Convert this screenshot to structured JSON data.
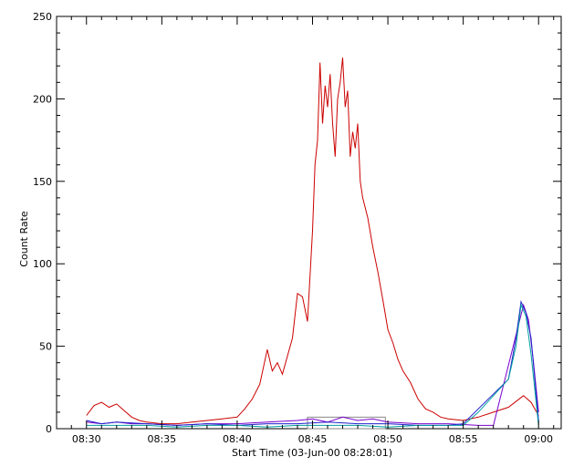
{
  "chart_data": {
    "type": "line",
    "xlabel": "Start Time (03-Jun-00 08:28:01)",
    "ylabel": "Count Rate",
    "xlim": [
      "08:28:01",
      "09:01:30"
    ],
    "ylim": [
      0,
      250
    ],
    "x_ticks": [
      "08:30",
      "08:35",
      "08:40",
      "08:45",
      "08:50",
      "08:55",
      "09:00"
    ],
    "y_ticks": [
      0,
      50,
      100,
      150,
      200,
      250
    ],
    "grid": false,
    "legend": "none",
    "series": [
      {
        "color": "#cc0000",
        "points": [
          [
            "08:30:00",
            8
          ],
          [
            "08:30:30",
            14
          ],
          [
            "08:31:00",
            16
          ],
          [
            "08:31:30",
            13
          ],
          [
            "08:32:00",
            15
          ],
          [
            "08:32:30",
            11
          ],
          [
            "08:33:00",
            7
          ],
          [
            "08:33:30",
            5
          ],
          [
            "08:34:00",
            4
          ],
          [
            "08:35:00",
            3
          ],
          [
            "08:36:00",
            3
          ],
          [
            "08:37:00",
            4
          ],
          [
            "08:38:00",
            5
          ],
          [
            "08:39:00",
            6
          ],
          [
            "08:40:00",
            7
          ],
          [
            "08:40:30",
            12
          ],
          [
            "08:41:00",
            18
          ],
          [
            "08:41:30",
            27
          ],
          [
            "08:42:00",
            48
          ],
          [
            "08:42:20",
            35
          ],
          [
            "08:42:40",
            40
          ],
          [
            "08:43:00",
            33
          ],
          [
            "08:43:20",
            44
          ],
          [
            "08:43:40",
            55
          ],
          [
            "08:44:00",
            82
          ],
          [
            "08:44:20",
            80
          ],
          [
            "08:44:40",
            65
          ],
          [
            "08:45:00",
            120
          ],
          [
            "08:45:10",
            160
          ],
          [
            "08:45:20",
            175
          ],
          [
            "08:45:30",
            222
          ],
          [
            "08:45:40",
            185
          ],
          [
            "08:45:50",
            208
          ],
          [
            "08:46:00",
            195
          ],
          [
            "08:46:10",
            215
          ],
          [
            "08:46:20",
            185
          ],
          [
            "08:46:30",
            165
          ],
          [
            "08:46:40",
            200
          ],
          [
            "08:46:50",
            210
          ],
          [
            "08:47:00",
            225
          ],
          [
            "08:47:10",
            195
          ],
          [
            "08:47:20",
            205
          ],
          [
            "08:47:30",
            165
          ],
          [
            "08:47:40",
            180
          ],
          [
            "08:47:50",
            170
          ],
          [
            "08:48:00",
            185
          ],
          [
            "08:48:10",
            150
          ],
          [
            "08:48:20",
            140
          ],
          [
            "08:48:40",
            128
          ],
          [
            "08:49:00",
            110
          ],
          [
            "08:49:20",
            95
          ],
          [
            "08:49:40",
            78
          ],
          [
            "08:50:00",
            60
          ],
          [
            "08:50:20",
            52
          ],
          [
            "08:50:40",
            42
          ],
          [
            "08:51:00",
            35
          ],
          [
            "08:51:30",
            28
          ],
          [
            "08:52:00",
            18
          ],
          [
            "08:52:30",
            12
          ],
          [
            "08:53:00",
            10
          ],
          [
            "08:53:30",
            7
          ],
          [
            "08:54:00",
            6
          ],
          [
            "08:55:00",
            5
          ],
          [
            "08:56:00",
            7
          ],
          [
            "08:57:00",
            10
          ],
          [
            "08:58:00",
            13
          ],
          [
            "08:59:00",
            20
          ],
          [
            "08:59:30",
            16
          ],
          [
            "09:00:00",
            8
          ]
        ]
      },
      {
        "color": "#7a00cc",
        "points": [
          [
            "08:30:00",
            4
          ],
          [
            "08:31:00",
            3
          ],
          [
            "08:32:00",
            4
          ],
          [
            "08:33:00",
            3
          ],
          [
            "08:34:00",
            3
          ],
          [
            "08:36:00",
            2
          ],
          [
            "08:38:00",
            3
          ],
          [
            "08:40:00",
            3
          ],
          [
            "08:42:00",
            4
          ],
          [
            "08:44:00",
            5
          ],
          [
            "08:45:00",
            6
          ],
          [
            "08:46:00",
            4
          ],
          [
            "08:47:00",
            7
          ],
          [
            "08:48:00",
            5
          ],
          [
            "08:49:00",
            6
          ],
          [
            "08:50:00",
            4
          ],
          [
            "08:52:00",
            3
          ],
          [
            "08:54:00",
            3
          ],
          [
            "08:56:00",
            2
          ],
          [
            "08:57:00",
            2
          ],
          [
            "08:59:00",
            75
          ],
          [
            "08:59:20",
            66
          ],
          [
            "08:59:40",
            40
          ],
          [
            "09:00:00",
            10
          ]
        ]
      },
      {
        "color": "#2020cc",
        "points": [
          [
            "08:30:00",
            5
          ],
          [
            "08:31:00",
            3
          ],
          [
            "08:32:00",
            4
          ],
          [
            "08:34:00",
            3
          ],
          [
            "08:36:00",
            2
          ],
          [
            "08:38:00",
            3
          ],
          [
            "08:40:00",
            2
          ],
          [
            "08:42:00",
            3
          ],
          [
            "08:44:00",
            3
          ],
          [
            "08:46:00",
            4
          ],
          [
            "08:48:00",
            3
          ],
          [
            "08:50:00",
            3
          ],
          [
            "08:52:00",
            2
          ],
          [
            "08:54:00",
            2
          ],
          [
            "08:55:00",
            3
          ],
          [
            "08:58:00",
            30
          ],
          [
            "08:58:30",
            55
          ],
          [
            "08:58:50",
            77
          ],
          [
            "08:59:10",
            70
          ],
          [
            "08:59:30",
            55
          ],
          [
            "09:00:00",
            5
          ]
        ]
      },
      {
        "color": "#00a0a0",
        "points": [
          [
            "08:30:00",
            2
          ],
          [
            "08:32:00",
            2
          ],
          [
            "08:34:00",
            2
          ],
          [
            "08:36:00",
            1
          ],
          [
            "08:38:00",
            2
          ],
          [
            "08:40:00",
            2
          ],
          [
            "08:42:00",
            1
          ],
          [
            "08:44:00",
            2
          ],
          [
            "08:46:00",
            2
          ],
          [
            "08:48:00",
            2
          ],
          [
            "08:50:00",
            1
          ],
          [
            "08:52:00",
            2
          ],
          [
            "08:55:00",
            2
          ],
          [
            "08:56:00",
            10
          ],
          [
            "08:57:00",
            20
          ],
          [
            "08:58:00",
            30
          ],
          [
            "08:58:30",
            50
          ],
          [
            "08:58:50",
            75
          ],
          [
            "08:59:10",
            68
          ],
          [
            "08:59:30",
            45
          ],
          [
            "09:00:00",
            2
          ]
        ]
      }
    ]
  },
  "page": {
    "colors": {
      "axis": "#000000",
      "box": "#888888"
    }
  }
}
